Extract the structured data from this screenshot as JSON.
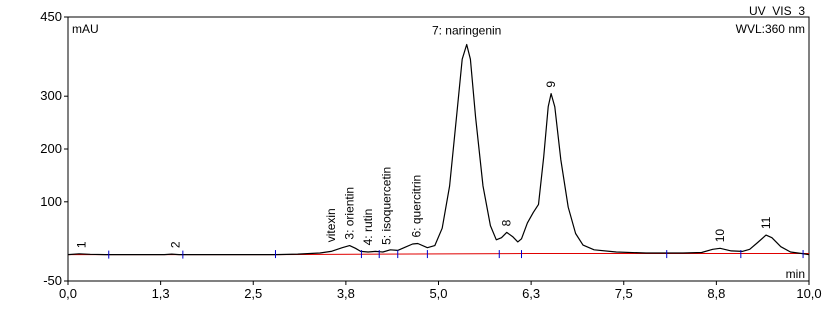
{
  "chart_data": {
    "type": "line",
    "trace_name": "UV_VIS_3",
    "wavelength": "WVL:360 nm",
    "xlabel": "min",
    "ylabel": "mAU",
    "xlim": [
      0.0,
      10.0
    ],
    "ylim": [
      -50,
      450
    ],
    "x_ticks": [
      {
        "v": 0.0,
        "label": "0,0"
      },
      {
        "v": 1.25,
        "label": "1,3"
      },
      {
        "v": 2.5,
        "label": "2,5"
      },
      {
        "v": 3.75,
        "label": "3,8"
      },
      {
        "v": 5.0,
        "label": "5,0"
      },
      {
        "v": 6.25,
        "label": "6,3"
      },
      {
        "v": 7.5,
        "label": "7,5"
      },
      {
        "v": 8.75,
        "label": "8,8"
      },
      {
        "v": 10.0,
        "label": "10,0"
      }
    ],
    "y_ticks": [
      {
        "v": -50,
        "label": "-50"
      },
      {
        "v": 100,
        "label": "100"
      },
      {
        "v": 200,
        "label": "200"
      },
      {
        "v": 300,
        "label": "300"
      },
      {
        "v": 450,
        "label": "450"
      }
    ],
    "series": [
      {
        "points": [
          [
            0.0,
            0
          ],
          [
            0.15,
            1.5
          ],
          [
            0.3,
            0.5
          ],
          [
            0.5,
            0
          ],
          [
            1.3,
            0
          ],
          [
            1.4,
            1
          ],
          [
            1.5,
            0
          ],
          [
            2.8,
            0
          ],
          [
            3.1,
            1
          ],
          [
            3.4,
            3
          ],
          [
            3.55,
            6
          ],
          [
            3.7,
            13
          ],
          [
            3.8,
            17
          ],
          [
            3.88,
            12
          ],
          [
            3.95,
            6
          ],
          [
            4.05,
            5
          ],
          [
            4.15,
            6
          ],
          [
            4.25,
            5
          ],
          [
            4.35,
            9
          ],
          [
            4.45,
            8
          ],
          [
            4.55,
            14
          ],
          [
            4.65,
            20
          ],
          [
            4.72,
            21
          ],
          [
            4.85,
            13
          ],
          [
            4.95,
            17
          ],
          [
            5.05,
            50
          ],
          [
            5.15,
            130
          ],
          [
            5.25,
            270
          ],
          [
            5.32,
            370
          ],
          [
            5.38,
            398
          ],
          [
            5.43,
            370
          ],
          [
            5.5,
            260
          ],
          [
            5.6,
            130
          ],
          [
            5.7,
            55
          ],
          [
            5.78,
            28
          ],
          [
            5.85,
            32
          ],
          [
            5.92,
            42
          ],
          [
            6.0,
            34
          ],
          [
            6.07,
            24
          ],
          [
            6.12,
            30
          ],
          [
            6.2,
            60
          ],
          [
            6.28,
            80
          ],
          [
            6.35,
            95
          ],
          [
            6.42,
            185
          ],
          [
            6.48,
            280
          ],
          [
            6.52,
            305
          ],
          [
            6.57,
            280
          ],
          [
            6.65,
            180
          ],
          [
            6.75,
            90
          ],
          [
            6.85,
            40
          ],
          [
            6.95,
            18
          ],
          [
            7.1,
            9
          ],
          [
            7.4,
            5
          ],
          [
            7.8,
            3
          ],
          [
            8.3,
            3
          ],
          [
            8.55,
            4
          ],
          [
            8.7,
            10
          ],
          [
            8.8,
            12
          ],
          [
            8.95,
            7
          ],
          [
            9.1,
            6
          ],
          [
            9.2,
            10
          ],
          [
            9.3,
            22
          ],
          [
            9.42,
            37
          ],
          [
            9.5,
            32
          ],
          [
            9.62,
            15
          ],
          [
            9.75,
            5
          ],
          [
            9.9,
            2
          ],
          [
            10.0,
            0
          ]
        ]
      }
    ],
    "baseline": [
      [
        0.0,
        0
      ],
      [
        2.8,
        0
      ],
      [
        6.2,
        2
      ],
      [
        10.0,
        2
      ]
    ],
    "integration_marks": [
      0.55,
      1.55,
      2.8,
      3.96,
      4.2,
      4.45,
      4.85,
      5.82,
      6.12,
      8.08,
      9.08,
      9.92
    ],
    "peaks": [
      {
        "label": "1",
        "x": 0.18,
        "y": 1
      },
      {
        "label": "2",
        "x": 1.45,
        "y": 1
      },
      {
        "label": "vitexin",
        "x": 3.55,
        "y": 12
      },
      {
        "label": "3: orientin",
        "x": 3.8,
        "y": 17
      },
      {
        "label": "4: rutin",
        "x": 4.05,
        "y": 6
      },
      {
        "label": "5: isoquercetin",
        "x": 4.3,
        "y": 7
      },
      {
        "label": "6: quercitrin",
        "x": 4.7,
        "y": 21
      },
      {
        "label": "7: naringenin",
        "x": 5.38,
        "y": 398
      },
      {
        "label": "8",
        "x": 5.92,
        "y": 42
      },
      {
        "label": "9",
        "x": 6.52,
        "y": 305
      },
      {
        "label": "10",
        "x": 8.8,
        "y": 12
      },
      {
        "label": "11",
        "x": 9.42,
        "y": 37
      }
    ],
    "colors": {
      "trace": "#000000",
      "baseline": "#e00000",
      "marks": "#0000cc",
      "peak_marks": "#ff00ff"
    }
  }
}
